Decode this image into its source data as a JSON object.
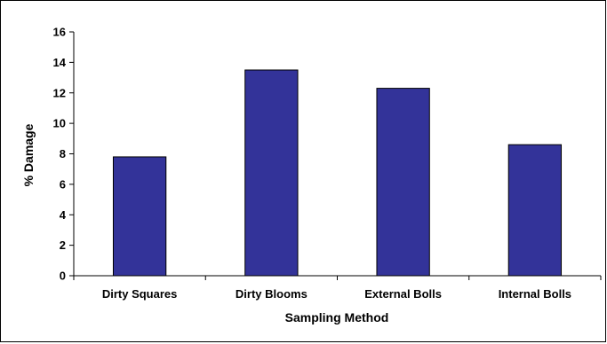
{
  "chart_data": {
    "type": "bar",
    "categories": [
      "Dirty Squares",
      "Dirty Blooms",
      "External Bolls",
      "Internal Bolls"
    ],
    "values": [
      7.8,
      13.5,
      12.3,
      8.6
    ],
    "xlabel": "Sampling Method",
    "ylabel": "% Damage",
    "ylim": [
      0,
      16
    ],
    "yticks": [
      "0",
      "2",
      "4",
      "6",
      "8",
      "10",
      "12",
      "14",
      "16"
    ],
    "grid": false,
    "legend": "none",
    "bar_color": "#333399"
  }
}
